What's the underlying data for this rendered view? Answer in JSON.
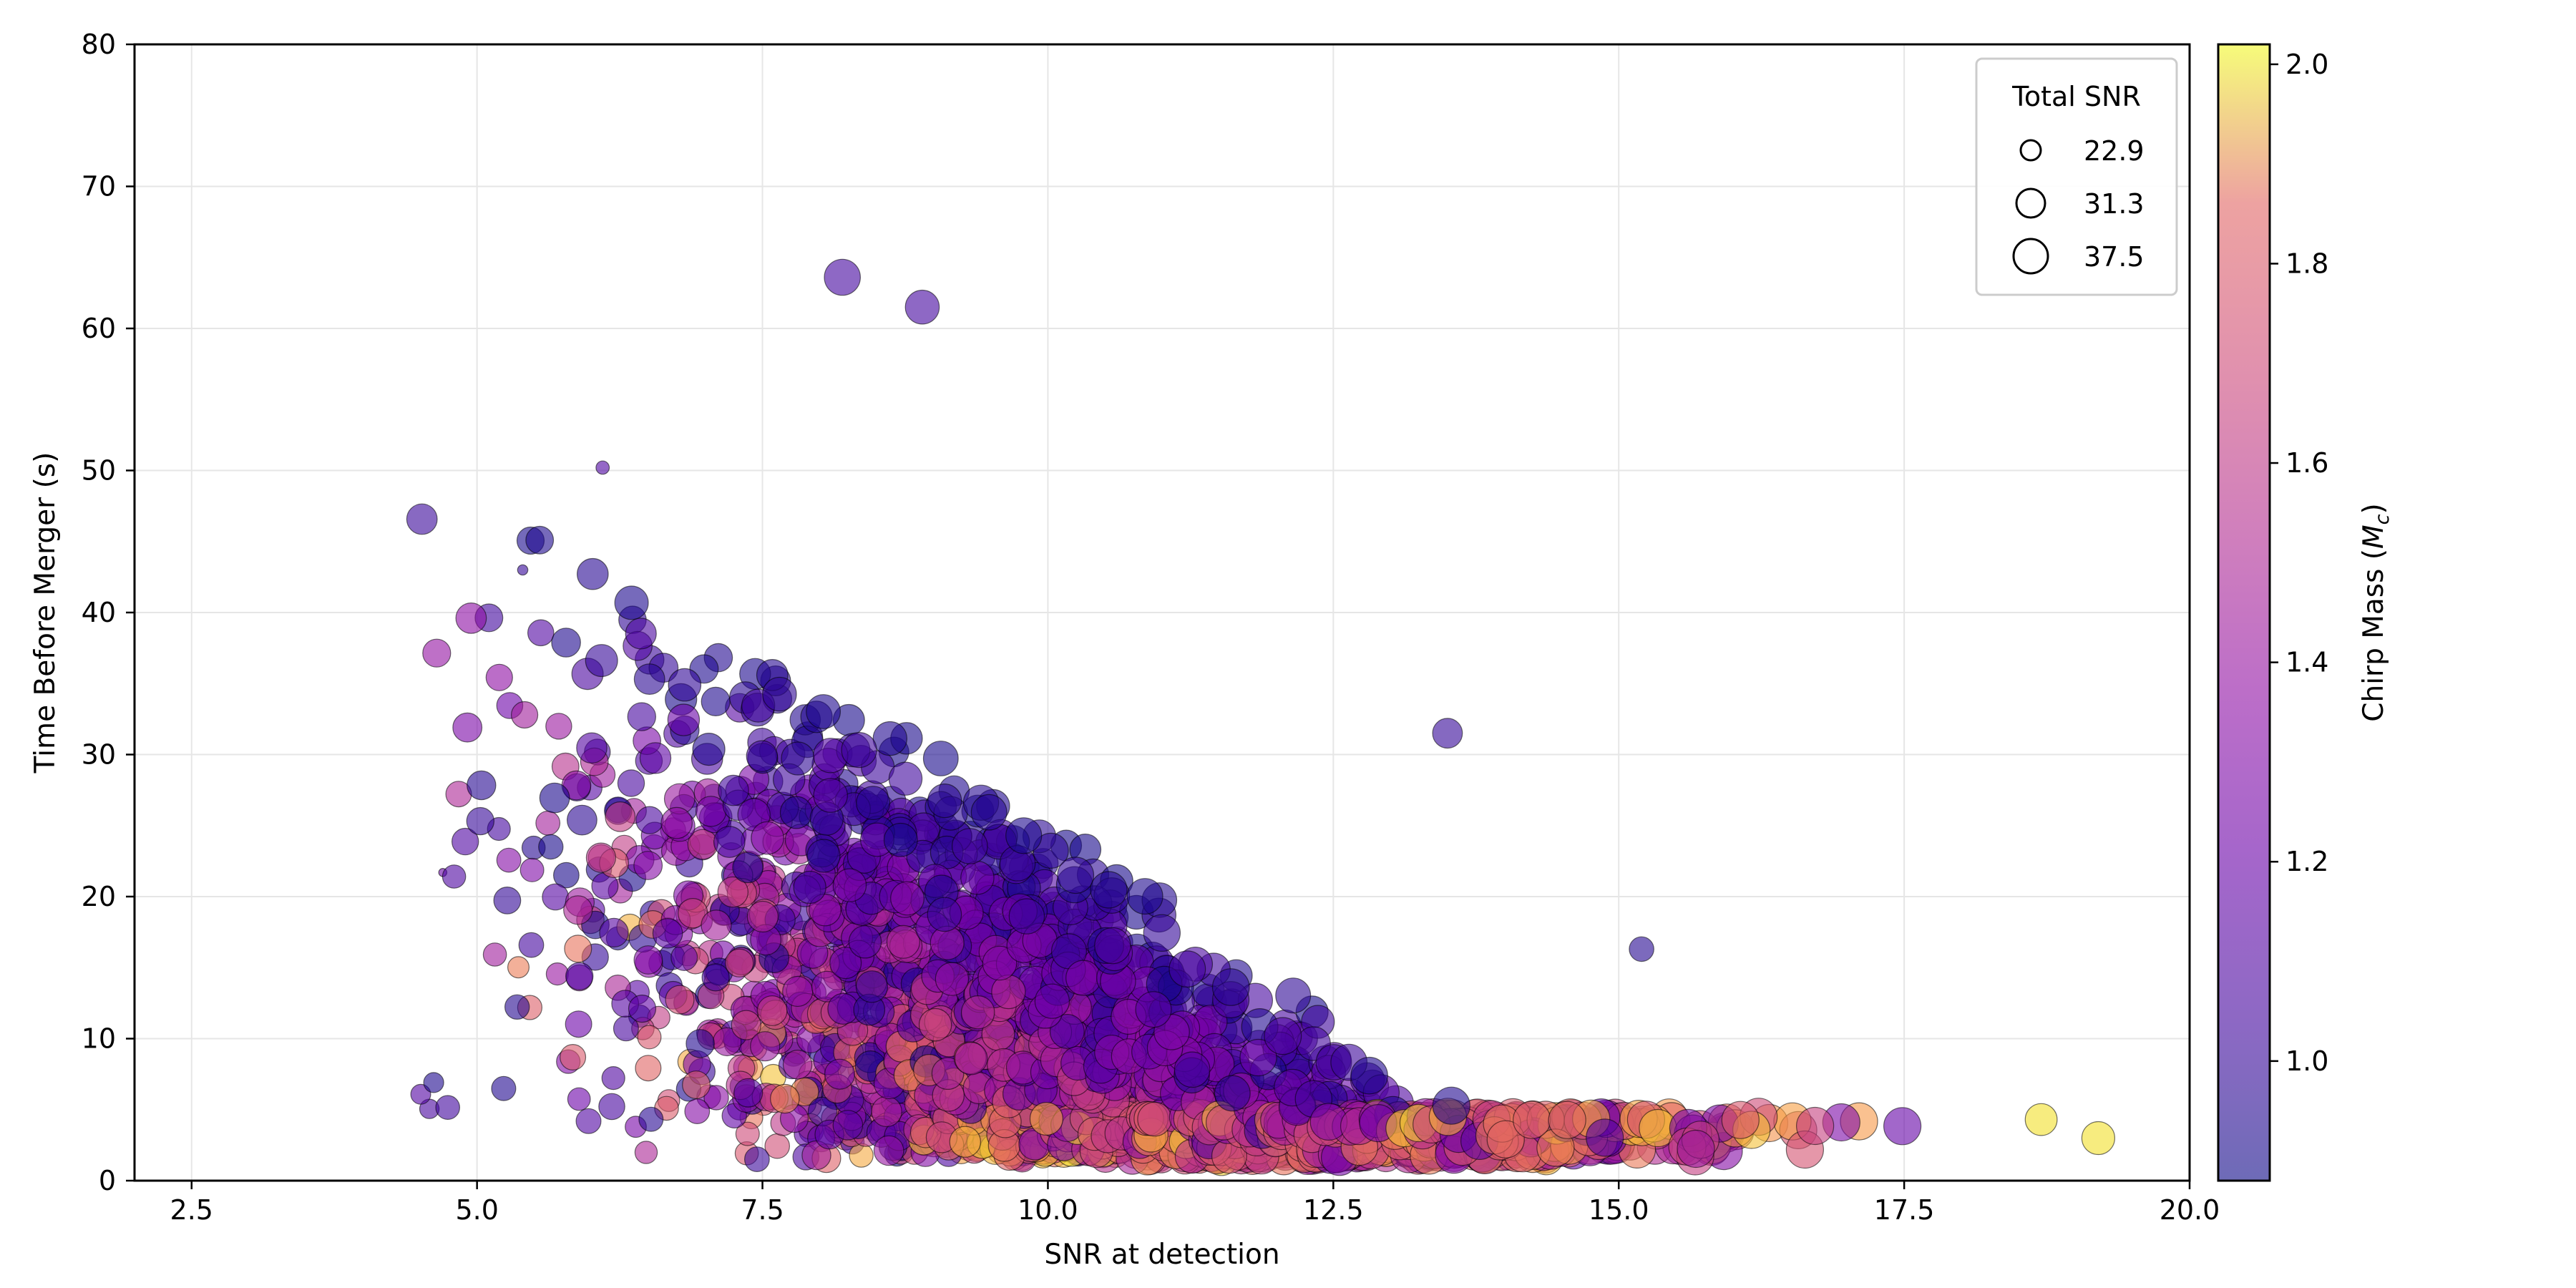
{
  "chart_data": {
    "type": "scatter",
    "xlabel": "SNR at detection",
    "ylabel": "Time Before Merger (s)",
    "xlim": [
      2.0,
      20.0
    ],
    "ylim": [
      0,
      80
    ],
    "xticks": [
      "2.5",
      "5.0",
      "7.5",
      "10.0",
      "12.5",
      "15.0",
      "17.5",
      "20.0"
    ],
    "yticks": [
      "0",
      "10",
      "20",
      "30",
      "40",
      "50",
      "60",
      "70",
      "80"
    ],
    "grid": true,
    "colormap": "plasma",
    "colorbar": {
      "label": "Chirp Mass (Mc)",
      "label_prefix": "Chirp Mass (",
      "label_symbol": "M",
      "label_subscript": "c",
      "label_suffix": ")",
      "range": [
        0.88,
        2.02
      ],
      "ticks": [
        "1.0",
        "1.2",
        "1.4",
        "1.6",
        "1.8",
        "2.0"
      ]
    },
    "size_legend": {
      "title": "Total SNR",
      "placement": "top-right",
      "entries": [
        "22.9",
        "31.3",
        "37.5"
      ]
    },
    "marker_alpha": 0.6,
    "marker_edge_color": "#000000",
    "point_count_estimate": 3000,
    "notable_points": [
      {
        "x": 4.7,
        "y": 21.7,
        "mc": 1.2,
        "total_snr": 9
      },
      {
        "x": 5.4,
        "y": 43.0,
        "mc": 1.0,
        "total_snr": 11
      },
      {
        "x": 6.1,
        "y": 50.2,
        "mc": 1.1,
        "total_snr": 14
      },
      {
        "x": 8.2,
        "y": 63.6,
        "mc": 1.05,
        "total_snr": 36
      },
      {
        "x": 8.9,
        "y": 61.5,
        "mc": 1.05,
        "total_snr": 34
      },
      {
        "x": 13.5,
        "y": 31.5,
        "mc": 1.0,
        "total_snr": 30
      },
      {
        "x": 15.2,
        "y": 16.3,
        "mc": 0.95,
        "total_snr": 25
      },
      {
        "x": 19.2,
        "y": 3.0,
        "mc": 2.0,
        "total_snr": 33
      },
      {
        "x": 18.7,
        "y": 4.3,
        "mc": 2.0,
        "total_snr": 32
      }
    ]
  }
}
